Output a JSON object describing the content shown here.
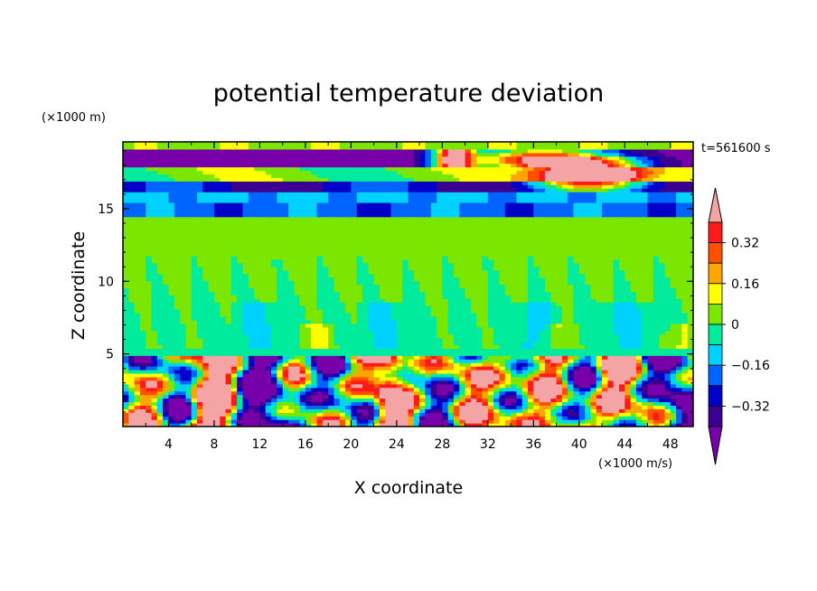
{
  "chart_data": {
    "type": "heatmap",
    "title": "potential temperature deviation",
    "xlabel": "X coordinate",
    "ylabel": "Z coordinate",
    "x_unit": "(×1000 m/s)",
    "y_unit": "(×1000 m)",
    "time_label": "t=561600 s",
    "x_range": [
      0,
      50
    ],
    "y_range": [
      0,
      19.6
    ],
    "x_ticks": [
      4,
      8,
      12,
      16,
      20,
      24,
      28,
      32,
      36,
      40,
      44,
      48
    ],
    "y_ticks": [
      5,
      10,
      15
    ],
    "colorbar": {
      "levels": [
        -0.4,
        -0.32,
        -0.24,
        -0.16,
        -0.08,
        0,
        0.08,
        0.16,
        0.24,
        0.32,
        0.4
      ],
      "tick_labels": [
        "0.32",
        "0.16",
        "0",
        "−0.16",
        "−0.32"
      ],
      "tick_values": [
        0.32,
        0.16,
        0,
        -0.16,
        -0.32
      ],
      "colors": [
        "#7700aa",
        "#3b008f",
        "#0000c8",
        "#0064ff",
        "#00d2ff",
        "#00eb9c",
        "#7be600",
        "#ffff00",
        "#ffa500",
        "#ff5000",
        "#ff1a1a",
        "#f4a4a4"
      ],
      "extend": "both"
    }
  }
}
